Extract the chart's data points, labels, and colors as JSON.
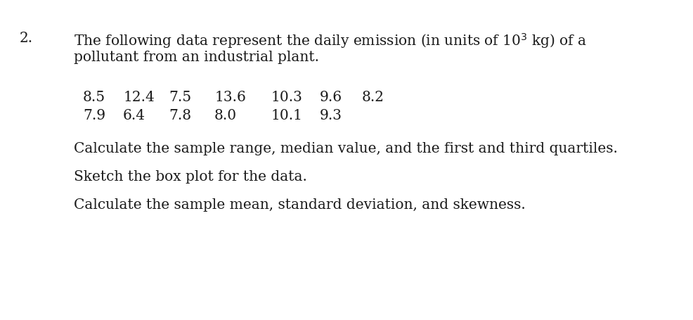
{
  "number": "2.",
  "line1_before_super": "The following data represent the daily emission (in units of 10",
  "superscript": "3",
  "line1_after_super": " kg) of a",
  "line2": "pollutant from an industrial plant.",
  "data_row1_values": [
    "8.5",
    "12.4",
    "7.5",
    "13.6",
    "10.3",
    "9.6",
    "8.2"
  ],
  "data_row2_values": [
    "7.9",
    "6.4",
    "7.8",
    "8.0",
    "10.1",
    "9.3"
  ],
  "instruction1": "Calculate the sample range, median value, and the first and third quartiles.",
  "instruction2": "Sketch the box plot for the data.",
  "instruction3": "Calculate the sample mean, standard deviation, and skewness.",
  "background_color": "#ffffff",
  "text_color": "#1a1a1a",
  "font_size": 14.5,
  "font_size_data": 14.5
}
